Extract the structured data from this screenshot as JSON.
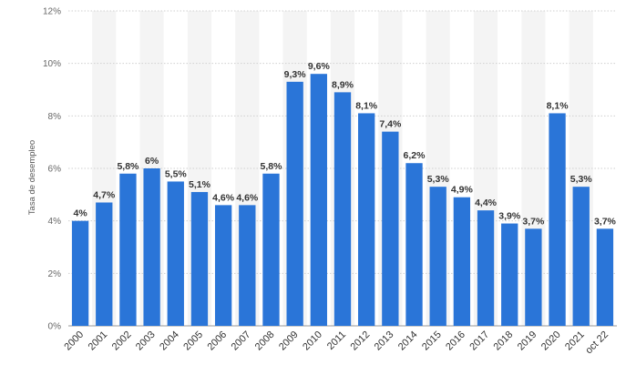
{
  "chart_data": {
    "type": "bar",
    "categories": [
      "2000",
      "2001",
      "2002",
      "2003",
      "2004",
      "2005",
      "2006",
      "2007",
      "2008",
      "2009",
      "2010",
      "2011",
      "2012",
      "2013",
      "2014",
      "2015",
      "2016",
      "2017",
      "2018",
      "2019",
      "2020",
      "2021",
      "oct 22"
    ],
    "values": [
      4,
      4.7,
      5.8,
      6,
      5.5,
      5.1,
      4.6,
      4.6,
      5.8,
      9.3,
      9.6,
      8.9,
      8.1,
      7.4,
      6.2,
      5.3,
      4.9,
      4.4,
      3.9,
      3.7,
      8.1,
      5.3,
      3.7
    ],
    "data_labels": [
      "4%",
      "4,7%",
      "5,8%",
      "6%",
      "5,5%",
      "5,1%",
      "4,6%",
      "4,6%",
      "5,8%",
      "9,3%",
      "9,6%",
      "8,9%",
      "8,1%",
      "7,4%",
      "6,2%",
      "5,3%",
      "4,9%",
      "4,4%",
      "3,9%",
      "3,7%",
      "8,1%",
      "5,3%",
      "3,7%"
    ],
    "ylabel": "Tasa de desempleo",
    "xlabel": "",
    "title": "",
    "ylim": [
      0,
      12
    ],
    "yticks": [
      0,
      2,
      4,
      6,
      8,
      10,
      12
    ],
    "ytick_labels": [
      "0%",
      "2%",
      "4%",
      "6%",
      "8%",
      "10%",
      "12%"
    ],
    "grid": true,
    "bar_color": "#2a75d8",
    "alt_band_color": "#f4f4f4",
    "grid_color": "#cfcfcf"
  }
}
